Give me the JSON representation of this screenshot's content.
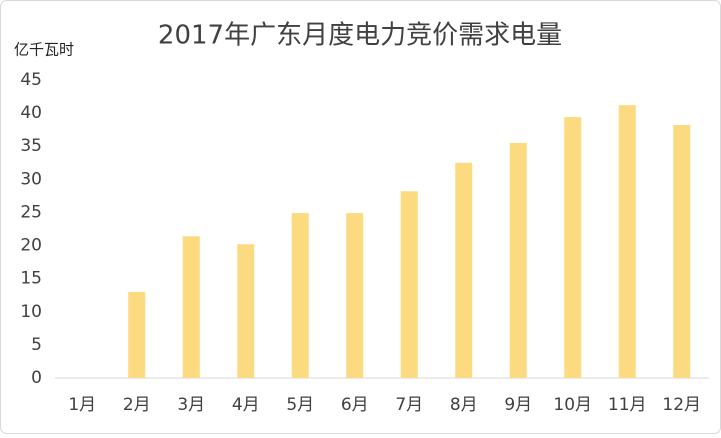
{
  "chart_data": {
    "type": "bar",
    "title": "2017年广东月度电力竞价需求电量",
    "y_label": "亿千瓦时",
    "categories": [
      "1月",
      "2月",
      "3月",
      "4月",
      "5月",
      "6月",
      "7月",
      "8月",
      "9月",
      "10月",
      "11月",
      "12月"
    ],
    "values": [
      null,
      13,
      21.4,
      20.2,
      24.9,
      24.9,
      28.2,
      32.5,
      35.5,
      39.4,
      41.2,
      38.2
    ],
    "color": "#fbda80",
    "ylim": [
      0,
      45
    ],
    "yticks": [
      0,
      5,
      10,
      15,
      20,
      25,
      30,
      35,
      40,
      45
    ],
    "grid": false
  }
}
